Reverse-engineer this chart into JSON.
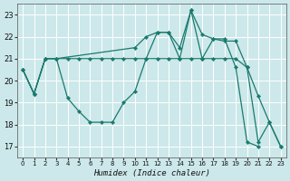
{
  "xlabel": "Humidex (Indice chaleur)",
  "bg_color": "#cce8ea",
  "line_color": "#1a7a6e",
  "grid_color": "#ffffff",
  "xlim": [
    -0.5,
    23.5
  ],
  "ylim": [
    16.5,
    23.5
  ],
  "yticks": [
    17,
    18,
    19,
    20,
    21,
    22,
    23
  ],
  "xticks": [
    0,
    1,
    2,
    3,
    4,
    5,
    6,
    7,
    8,
    9,
    10,
    11,
    12,
    13,
    14,
    15,
    16,
    17,
    18,
    19,
    20,
    21,
    22,
    23
  ],
  "series": [
    {
      "x": [
        0,
        1,
        2,
        3,
        4,
        5,
        6,
        7,
        8,
        9,
        10,
        11,
        12,
        13,
        14,
        15,
        16,
        17,
        18,
        19,
        20,
        21
      ],
      "y": [
        20.5,
        19.4,
        21.0,
        21.0,
        19.2,
        18.6,
        18.1,
        18.1,
        18.1,
        19.0,
        19.5,
        21.0,
        22.2,
        22.2,
        21.0,
        23.2,
        21.0,
        21.9,
        21.9,
        20.6,
        17.2,
        17.0
      ]
    },
    {
      "x": [
        0,
        1,
        2,
        3,
        4,
        5,
        6,
        7,
        8,
        9,
        10,
        11,
        12,
        13,
        14,
        15,
        16,
        17,
        18,
        19,
        20,
        21,
        22,
        23
      ],
      "y": [
        20.5,
        19.4,
        21.0,
        21.0,
        21.0,
        21.0,
        21.0,
        21.0,
        21.0,
        21.0,
        21.0,
        21.0,
        21.0,
        21.0,
        21.0,
        21.0,
        21.0,
        21.0,
        21.0,
        21.0,
        20.6,
        19.3,
        18.1,
        17.0
      ]
    },
    {
      "x": [
        0,
        1,
        2,
        3,
        10,
        11,
        12,
        13,
        14,
        15,
        16,
        17,
        18,
        19,
        20,
        21,
        22,
        23
      ],
      "y": [
        20.5,
        19.4,
        21.0,
        21.0,
        21.5,
        22.0,
        22.2,
        22.2,
        21.5,
        23.2,
        22.1,
        21.9,
        21.8,
        21.8,
        20.6,
        17.2,
        18.1,
        17.0
      ]
    }
  ]
}
